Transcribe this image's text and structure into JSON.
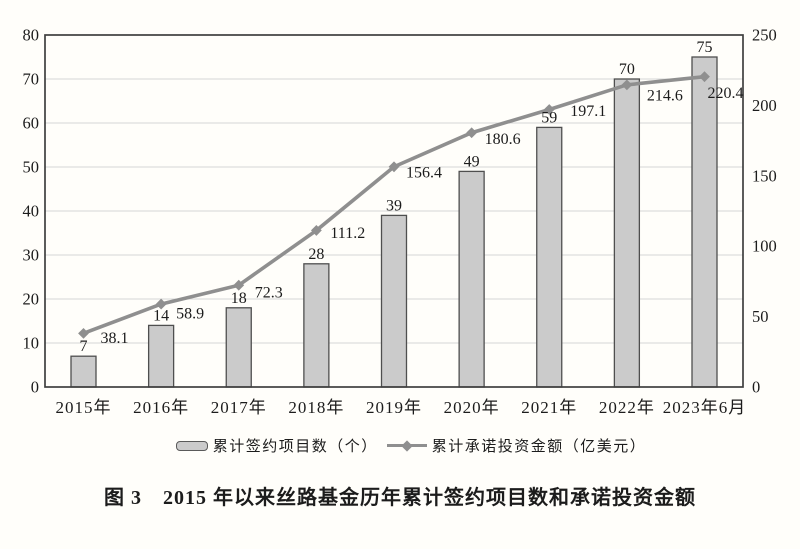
{
  "page": {
    "background": "#fffefa"
  },
  "chart_data": {
    "type": "bar",
    "subtype": "combo-bar-line-dual-axis",
    "categories": [
      "2015年",
      "2016年",
      "2017年",
      "2018年",
      "2019年",
      "2020年",
      "2021年",
      "2022年",
      "2023年6月"
    ],
    "series": [
      {
        "name": "累计签约项目数（个）",
        "type": "bar",
        "axis": "left",
        "values": [
          7,
          14,
          18,
          28,
          39,
          49,
          59,
          70,
          75
        ]
      },
      {
        "name": "累计承诺投资金额（亿美元）",
        "type": "line",
        "axis": "right",
        "marker": "diamond",
        "values": [
          38.1,
          58.9,
          72.3,
          111.2,
          156.4,
          180.6,
          197.1,
          214.6,
          220.4
        ]
      }
    ],
    "left_axis": {
      "min": 0,
      "max": 80,
      "tick_step": 10,
      "ticks": [
        0,
        10,
        20,
        30,
        40,
        50,
        60,
        70,
        80
      ]
    },
    "right_axis": {
      "min": 0,
      "max": 250,
      "tick_step": 50,
      "ticks": [
        0,
        50,
        100,
        150,
        200,
        250
      ]
    },
    "grid": "horizontal",
    "legend_position": "bottom",
    "data_labels": true,
    "colors": {
      "bar_fill": "#cbcbcb",
      "bar_border": "#4f4f4f",
      "line": "#8f8f8f",
      "grid": "#d6d6d6",
      "plot_border": "#3f3f3f",
      "text": "#1c1c1c"
    }
  },
  "caption": "图 3　2015 年以来丝路基金历年累计签约项目数和承诺投资金额"
}
